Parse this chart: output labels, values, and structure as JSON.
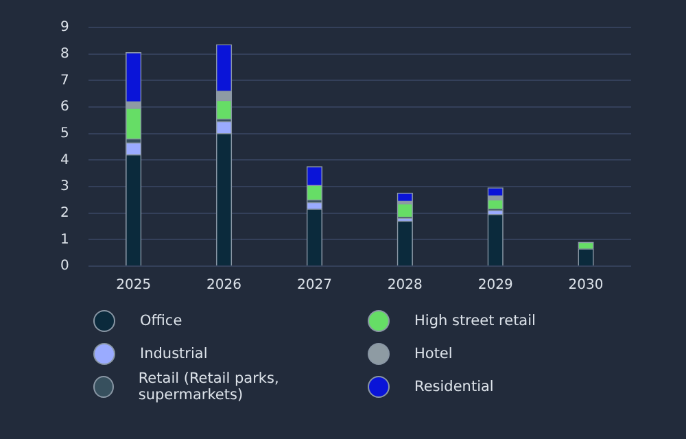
{
  "chart_data": {
    "type": "bar",
    "stacked": true,
    "categories": [
      "2025",
      "2026",
      "2027",
      "2028",
      "2029",
      "2030"
    ],
    "ylim": [
      0,
      9
    ],
    "yticks": [
      0,
      1,
      2,
      3,
      4,
      5,
      6,
      7,
      8,
      9
    ],
    "grid": "y",
    "legend": "bottom",
    "series": [
      {
        "name": "Office",
        "color": "#0b2a3c",
        "values": [
          4.2,
          5.0,
          2.15,
          1.7,
          1.95,
          0.65
        ]
      },
      {
        "name": "Industrial",
        "color": "#9aabff",
        "values": [
          0.45,
          0.45,
          0.25,
          0.1,
          0.15,
          null
        ]
      },
      {
        "name": "Retail (Retail parks, supermarkets)",
        "color": "#37505e",
        "values": [
          0.15,
          0.1,
          0.1,
          0.05,
          0.05,
          null
        ]
      },
      {
        "name": "High street retail",
        "color": "#66dd66",
        "values": [
          1.15,
          0.7,
          0.55,
          0.5,
          0.35,
          0.25
        ]
      },
      {
        "name": "Hotel",
        "color": "#8e9ba3",
        "values": [
          0.25,
          0.35,
          null,
          0.1,
          0.15,
          null
        ]
      },
      {
        "name": "Residential",
        "color": "#0a14d8",
        "values": [
          1.85,
          1.75,
          0.7,
          0.3,
          0.3,
          null
        ]
      }
    ]
  }
}
